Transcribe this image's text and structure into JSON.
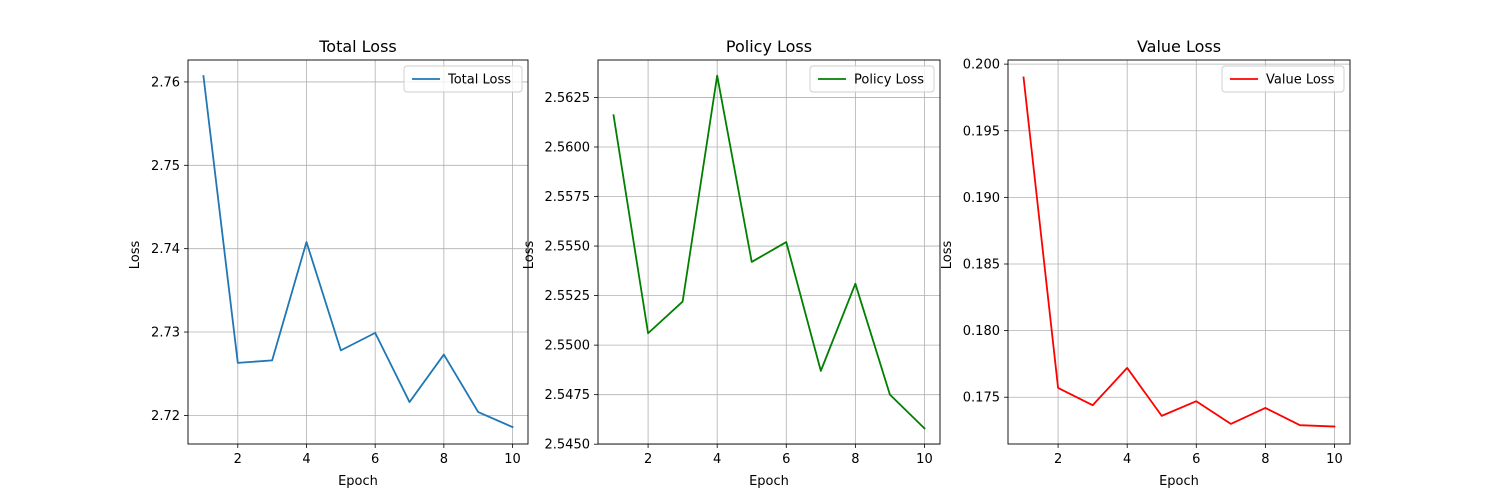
{
  "chart_data": [
    {
      "type": "line",
      "title": "Total Loss",
      "xlabel": "Epoch",
      "ylabel": "Loss",
      "x": [
        1,
        2,
        3,
        4,
        5,
        6,
        7,
        8,
        9,
        10
      ],
      "series": [
        {
          "name": "Total Loss",
          "color": "#1f77b4",
          "values": [
            2.7607,
            2.7263,
            2.7266,
            2.7408,
            2.7278,
            2.7299,
            2.7216,
            2.7273,
            2.7204,
            2.7186
          ]
        }
      ],
      "xlim": [
        0.55,
        10.45
      ],
      "ylim": [
        2.71657,
        2.76263
      ],
      "xticks": [
        2,
        4,
        6,
        8,
        10
      ],
      "xtick_labels": [
        "2",
        "4",
        "6",
        "8",
        "10"
      ],
      "yticks": [
        2.72,
        2.73,
        2.74,
        2.75,
        2.76
      ],
      "ytick_labels": [
        "2.72",
        "2.73",
        "2.74",
        "2.75",
        "2.76"
      ],
      "grid": true,
      "legend": "upper right"
    },
    {
      "type": "line",
      "title": "Policy Loss",
      "xlabel": "Epoch",
      "ylabel": "Loss",
      "x": [
        1,
        2,
        3,
        4,
        5,
        6,
        7,
        8,
        9,
        10
      ],
      "series": [
        {
          "name": "Policy Loss",
          "color": "#008000",
          "values": [
            2.5616,
            2.5506,
            2.5522,
            2.5636,
            2.5542,
            2.5552,
            2.5487,
            2.5531,
            2.5475,
            2.5458
          ]
        }
      ],
      "xlim": [
        0.55,
        10.45
      ],
      "ylim": [
        2.54501,
        2.56439
      ],
      "xticks": [
        2,
        4,
        6,
        8,
        10
      ],
      "xtick_labels": [
        "2",
        "4",
        "6",
        "8",
        "10"
      ],
      "yticks": [
        2.545,
        2.5475,
        2.55,
        2.5525,
        2.555,
        2.5575,
        2.56,
        2.5625
      ],
      "ytick_labels": [
        "2.5450",
        "2.5475",
        "2.5500",
        "2.5525",
        "2.5550",
        "2.5575",
        "2.5600",
        "2.5625"
      ],
      "grid": true,
      "legend": "upper right"
    },
    {
      "type": "line",
      "title": "Value Loss",
      "xlabel": "Epoch",
      "ylabel": "Loss",
      "x": [
        1,
        2,
        3,
        4,
        5,
        6,
        7,
        8,
        9,
        10
      ],
      "series": [
        {
          "name": "Value Loss",
          "color": "#ff0000",
          "values": [
            0.199,
            0.1757,
            0.1744,
            0.1772,
            0.1736,
            0.1747,
            0.173,
            0.1742,
            0.1729,
            0.1728
          ]
        }
      ],
      "xlim": [
        0.55,
        10.45
      ],
      "ylim": [
        0.17149,
        0.20031
      ],
      "xticks": [
        2,
        4,
        6,
        8,
        10
      ],
      "xtick_labels": [
        "2",
        "4",
        "6",
        "8",
        "10"
      ],
      "yticks": [
        0.175,
        0.18,
        0.185,
        0.19,
        0.195,
        0.2
      ],
      "ytick_labels": [
        "0.175",
        "0.180",
        "0.185",
        "0.190",
        "0.195",
        "0.200"
      ],
      "grid": true,
      "legend": "upper right"
    }
  ]
}
